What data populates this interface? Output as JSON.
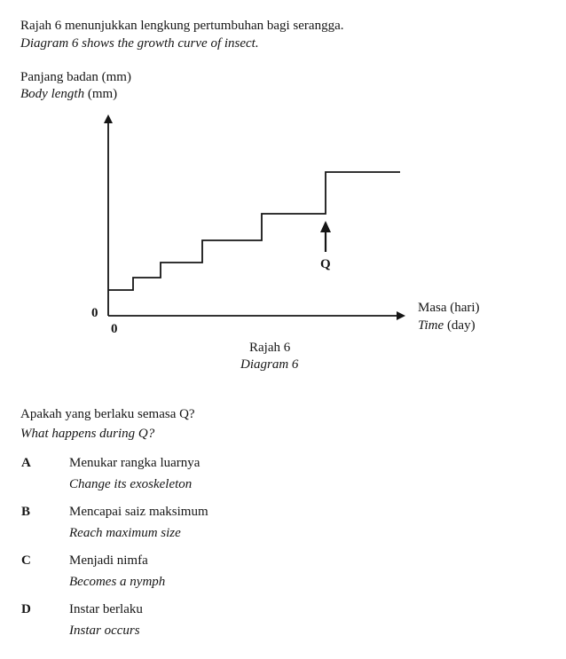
{
  "question": {
    "intro_ms": "Rajah 6 menunjukkan lengkung pertumbuhan bagi serangga.",
    "intro_en": "Diagram 6 shows the growth curve of insect.",
    "prompt_ms": "Apakah yang berlaku semasa Q?",
    "prompt_en": "What happens during Q?"
  },
  "diagram": {
    "ylabel_ms": "Panjang badan (mm)",
    "ylabel_en_italic": "Body length",
    "ylabel_en_unit": " (mm)",
    "xlabel_ms": "Masa (hari)",
    "xlabel_en_italic": "Time",
    "xlabel_en_unit": " (day)",
    "y_origin": "0",
    "x_origin": "0",
    "marker": "Q",
    "caption_ms": "Rajah 6",
    "caption_en": "Diagram 6"
  },
  "options": [
    {
      "letter": "A",
      "ms": "Menukar rangka luarnya",
      "en": "Change its exoskeleton"
    },
    {
      "letter": "B",
      "ms": "Mencapai saiz maksimum",
      "en": "Reach maximum size"
    },
    {
      "letter": "C",
      "ms": "Menjadi nimfa",
      "en": "Becomes a nymph"
    },
    {
      "letter": "D",
      "ms": "Instar berlaku",
      "en": "Instar occurs"
    }
  ]
}
